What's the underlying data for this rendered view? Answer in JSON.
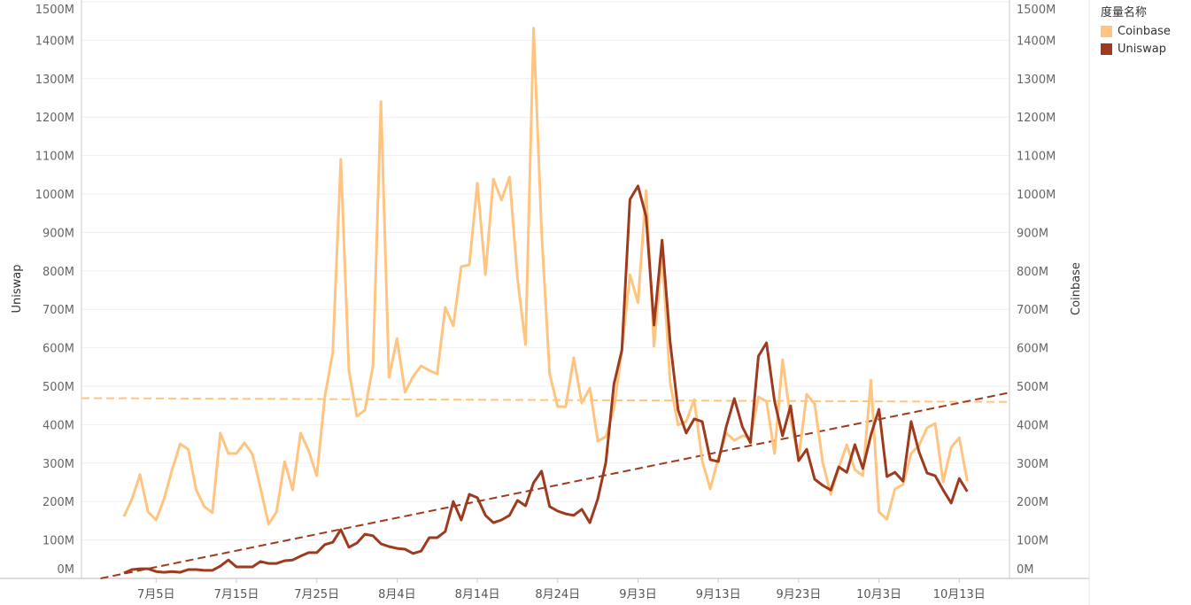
{
  "chart_data": {
    "type": "line",
    "title": "",
    "xlabel": "",
    "ylabel_left": "Uniswap",
    "ylabel_right": "Coinbase",
    "ylim": [
      0,
      1500
    ],
    "y_ticks": [
      "0M",
      "100M",
      "200M",
      "300M",
      "400M",
      "500M",
      "600M",
      "700M",
      "800M",
      "900M",
      "1000M",
      "1100M",
      "1200M",
      "1300M",
      "1400M",
      "1500M"
    ],
    "x_ticks": [
      {
        "label": "7月5日",
        "date": "7月5日"
      },
      {
        "label": "7月15日",
        "date": "7月15日"
      },
      {
        "label": "7月25日",
        "date": "7月25日"
      },
      {
        "label": "8月4日",
        "date": "8月4日"
      },
      {
        "label": "8月14日",
        "date": "8月14日"
      },
      {
        "label": "8月24日",
        "date": "8月24日"
      },
      {
        "label": "9月3日",
        "date": "9月3日"
      },
      {
        "label": "9月13日",
        "date": "9月13日"
      },
      {
        "label": "9月23日",
        "date": "9月23日"
      },
      {
        "label": "10月3日",
        "date": "10月3日"
      },
      {
        "label": "10月13日",
        "date": "10月13日"
      }
    ],
    "grid": true,
    "legend": {
      "title": "度量名称",
      "position": "top-right"
    },
    "trend_lines": true,
    "dates": [
      "7月1日",
      "7月2日",
      "7月3日",
      "7月4日",
      "7月5日",
      "7月6日",
      "7月7日",
      "7月8日",
      "7月9日",
      "7月10日",
      "7月11日",
      "7月12日",
      "7月13日",
      "7月14日",
      "7月15日",
      "7月16日",
      "7月17日",
      "7月18日",
      "7月19日",
      "7月20日",
      "7月21日",
      "7月22日",
      "7月23日",
      "7月24日",
      "7月25日",
      "7月26日",
      "7月27日",
      "7月28日",
      "7月29日",
      "7月30日",
      "7月31日",
      "8月1日",
      "8月2日",
      "8月3日",
      "8月4日",
      "8月5日",
      "8月6日",
      "8月7日",
      "8月8日",
      "8月9日",
      "8月10日",
      "8月11日",
      "8月12日",
      "8月13日",
      "8月14日",
      "8月15日",
      "8月16日",
      "8月17日",
      "8月18日",
      "8月19日",
      "8月20日",
      "8月21日",
      "8月22日",
      "8月23日",
      "8月24日",
      "8月25日",
      "8月26日",
      "8月27日",
      "8月28日",
      "8月29日",
      "8月30日",
      "8月31日",
      "9月1日",
      "9月2日",
      "9月3日",
      "9月4日",
      "9月5日",
      "9月6日",
      "9月7日",
      "9月8日",
      "9月9日",
      "9月10日",
      "9月11日",
      "9月12日",
      "9月13日",
      "9月14日",
      "9月15日",
      "9月16日",
      "9月17日",
      "9月18日",
      "9月19日",
      "9月20日",
      "9月21日",
      "9月22日",
      "9月23日",
      "9月24日",
      "9月25日",
      "9月26日",
      "9月27日",
      "9月28日",
      "9月29日",
      "9月30日",
      "10月1日",
      "10月2日",
      "10月3日",
      "10月4日",
      "10月5日",
      "10月6日",
      "10月7日",
      "10月8日",
      "10月9日",
      "10月10日",
      "10月11日",
      "10月12日",
      "10月13日",
      "10月14日"
    ],
    "series": [
      {
        "name": "Coinbase",
        "axis": "right",
        "color": "#FFC47F",
        "unit": "M",
        "values": [
          161,
          207,
          270,
          173,
          152,
          207,
          283,
          350,
          336,
          230,
          187,
          171,
          378,
          325,
          325,
          353,
          323,
          235,
          141,
          173,
          304,
          230,
          378,
          332,
          267,
          472,
          588,
          1090,
          541,
          422,
          438,
          553,
          1240,
          523,
          624,
          484,
          525,
          553,
          541,
          532,
          705,
          657,
          811,
          816,
          1028,
          790,
          1039,
          984,
          1044,
          781,
          608,
          1431,
          903,
          532,
          447,
          447,
          574,
          456,
          495,
          357,
          369,
          442,
          594,
          790,
          717,
          1009,
          604,
          848,
          509,
          399,
          408,
          465,
          306,
          233,
          313,
          378,
          359,
          371,
          366,
          472,
          461,
          325,
          569,
          415,
          311,
          479,
          454,
          302,
          219,
          288,
          348,
          283,
          267,
          516,
          173,
          154,
          233,
          244,
          325,
          346,
          392,
          403,
          251,
          341,
          366,
          253
        ]
      },
      {
        "name": "Uniswap",
        "axis": "left",
        "color": "#9E3A1E",
        "unit": "M",
        "values": [
          14,
          23,
          25,
          25,
          18,
          16,
          18,
          16,
          23,
          23,
          21,
          21,
          32,
          48,
          30,
          30,
          30,
          44,
          39,
          39,
          46,
          48,
          58,
          67,
          67,
          88,
          94,
          127,
          81,
          92,
          115,
          111,
          90,
          83,
          78,
          76,
          65,
          71,
          106,
          106,
          122,
          200,
          152,
          219,
          210,
          164,
          145,
          152,
          164,
          203,
          189,
          249,
          279,
          187,
          175,
          168,
          164,
          180,
          145,
          207,
          302,
          505,
          594,
          986,
          1021,
          942,
          659,
          880,
          615,
          438,
          378,
          415,
          408,
          309,
          304,
          396,
          468,
          394,
          353,
          578,
          613,
          461,
          371,
          449,
          306,
          336,
          258,
          242,
          230,
          290,
          276,
          348,
          286,
          373,
          440,
          265,
          276,
          253,
          408,
          329,
          274,
          267,
          230,
          196,
          260,
          226
        ]
      }
    ]
  }
}
